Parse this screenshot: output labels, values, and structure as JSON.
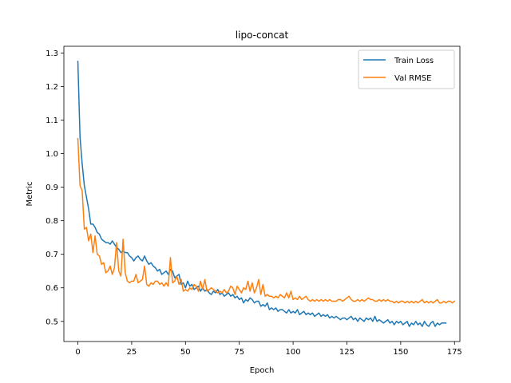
{
  "chart_data": {
    "type": "line",
    "title": "lipo-concat",
    "xlabel": "Epoch",
    "ylabel": "Metric",
    "xlim": [
      -6.5,
      177.5
    ],
    "ylim": [
      0.44,
      1.32
    ],
    "xticks": [
      0,
      25,
      50,
      75,
      100,
      125,
      150,
      175
    ],
    "yticks": [
      0.5,
      0.6,
      0.7,
      0.8,
      0.9,
      1.0,
      1.1,
      1.2,
      1.3
    ],
    "ytick_labels": [
      "0.5",
      "0.6",
      "0.7",
      "0.8",
      "0.9",
      "1.0",
      "1.1",
      "1.2",
      "1.3"
    ],
    "grid": false,
    "legend_position": "top-right",
    "series": [
      {
        "name": "Train Loss",
        "color": "#1f77b4",
        "x_start": 0,
        "x_step": 1,
        "values": [
          1.275,
          1.05,
          0.97,
          0.905,
          0.87,
          0.835,
          0.79,
          0.79,
          0.78,
          0.765,
          0.76,
          0.745,
          0.74,
          0.735,
          0.735,
          0.73,
          0.74,
          0.73,
          0.72,
          0.715,
          0.705,
          0.71,
          0.705,
          0.705,
          0.695,
          0.69,
          0.68,
          0.69,
          0.695,
          0.685,
          0.68,
          0.695,
          0.68,
          0.67,
          0.675,
          0.665,
          0.66,
          0.65,
          0.655,
          0.64,
          0.645,
          0.65,
          0.64,
          0.655,
          0.65,
          0.63,
          0.635,
          0.64,
          0.61,
          0.615,
          0.6,
          0.62,
          0.605,
          0.61,
          0.595,
          0.6,
          0.605,
          0.59,
          0.6,
          0.59,
          0.595,
          0.585,
          0.58,
          0.59,
          0.585,
          0.595,
          0.58,
          0.585,
          0.575,
          0.58,
          0.585,
          0.575,
          0.58,
          0.57,
          0.575,
          0.565,
          0.57,
          0.555,
          0.565,
          0.56,
          0.57,
          0.565,
          0.555,
          0.56,
          0.56,
          0.545,
          0.55,
          0.545,
          0.555,
          0.535,
          0.54,
          0.535,
          0.54,
          0.53,
          0.535,
          0.535,
          0.53,
          0.525,
          0.535,
          0.525,
          0.53,
          0.525,
          0.535,
          0.52,
          0.525,
          0.53,
          0.52,
          0.525,
          0.52,
          0.525,
          0.515,
          0.52,
          0.525,
          0.515,
          0.52,
          0.515,
          0.52,
          0.51,
          0.515,
          0.51,
          0.515,
          0.51,
          0.505,
          0.51,
          0.51,
          0.505,
          0.51,
          0.515,
          0.505,
          0.51,
          0.5,
          0.51,
          0.505,
          0.5,
          0.51,
          0.505,
          0.51,
          0.5,
          0.515,
          0.5,
          0.505,
          0.5,
          0.495,
          0.5,
          0.505,
          0.495,
          0.5,
          0.49,
          0.5,
          0.495,
          0.5,
          0.49,
          0.495,
          0.5,
          0.485,
          0.495,
          0.49,
          0.5,
          0.49,
          0.495,
          0.485,
          0.5,
          0.49,
          0.485,
          0.495,
          0.5,
          0.485,
          0.495,
          0.49,
          0.495,
          0.495,
          0.495
        ]
      },
      {
        "name": "Val RMSE",
        "color": "#ff7f0e",
        "x_start": 0,
        "x_step": 1,
        "values": [
          1.045,
          0.905,
          0.89,
          0.775,
          0.78,
          0.74,
          0.76,
          0.705,
          0.755,
          0.7,
          0.695,
          0.67,
          0.675,
          0.645,
          0.65,
          0.665,
          0.64,
          0.66,
          0.735,
          0.65,
          0.635,
          0.745,
          0.645,
          0.62,
          0.615,
          0.62,
          0.62,
          0.64,
          0.615,
          0.62,
          0.625,
          0.665,
          0.61,
          0.605,
          0.615,
          0.61,
          0.62,
          0.62,
          0.61,
          0.615,
          0.605,
          0.615,
          0.605,
          0.69,
          0.615,
          0.62,
          0.635,
          0.61,
          0.625,
          0.59,
          0.595,
          0.59,
          0.6,
          0.595,
          0.61,
          0.605,
          0.59,
          0.62,
          0.595,
          0.625,
          0.59,
          0.595,
          0.6,
          0.595,
          0.59,
          0.585,
          0.59,
          0.585,
          0.595,
          0.585,
          0.59,
          0.605,
          0.6,
          0.58,
          0.605,
          0.595,
          0.585,
          0.6,
          0.595,
          0.62,
          0.59,
          0.615,
          0.585,
          0.6,
          0.625,
          0.58,
          0.61,
          0.575,
          0.58,
          0.575,
          0.575,
          0.57,
          0.575,
          0.57,
          0.58,
          0.575,
          0.57,
          0.585,
          0.57,
          0.59,
          0.565,
          0.57,
          0.565,
          0.575,
          0.565,
          0.57,
          0.575,
          0.565,
          0.56,
          0.565,
          0.56,
          0.565,
          0.56,
          0.565,
          0.56,
          0.565,
          0.56,
          0.565,
          0.56,
          0.56,
          0.56,
          0.565,
          0.565,
          0.56,
          0.565,
          0.57,
          0.575,
          0.565,
          0.56,
          0.56,
          0.565,
          0.56,
          0.565,
          0.56,
          0.565,
          0.57,
          0.565,
          0.565,
          0.56,
          0.56,
          0.565,
          0.56,
          0.565,
          0.56,
          0.565,
          0.56,
          0.56,
          0.555,
          0.56,
          0.555,
          0.56,
          0.56,
          0.555,
          0.56,
          0.555,
          0.56,
          0.555,
          0.56,
          0.555,
          0.56,
          0.565,
          0.555,
          0.56,
          0.555,
          0.56,
          0.555,
          0.56,
          0.565,
          0.555,
          0.555,
          0.56,
          0.555,
          0.56,
          0.56,
          0.555,
          0.56
        ]
      }
    ]
  }
}
